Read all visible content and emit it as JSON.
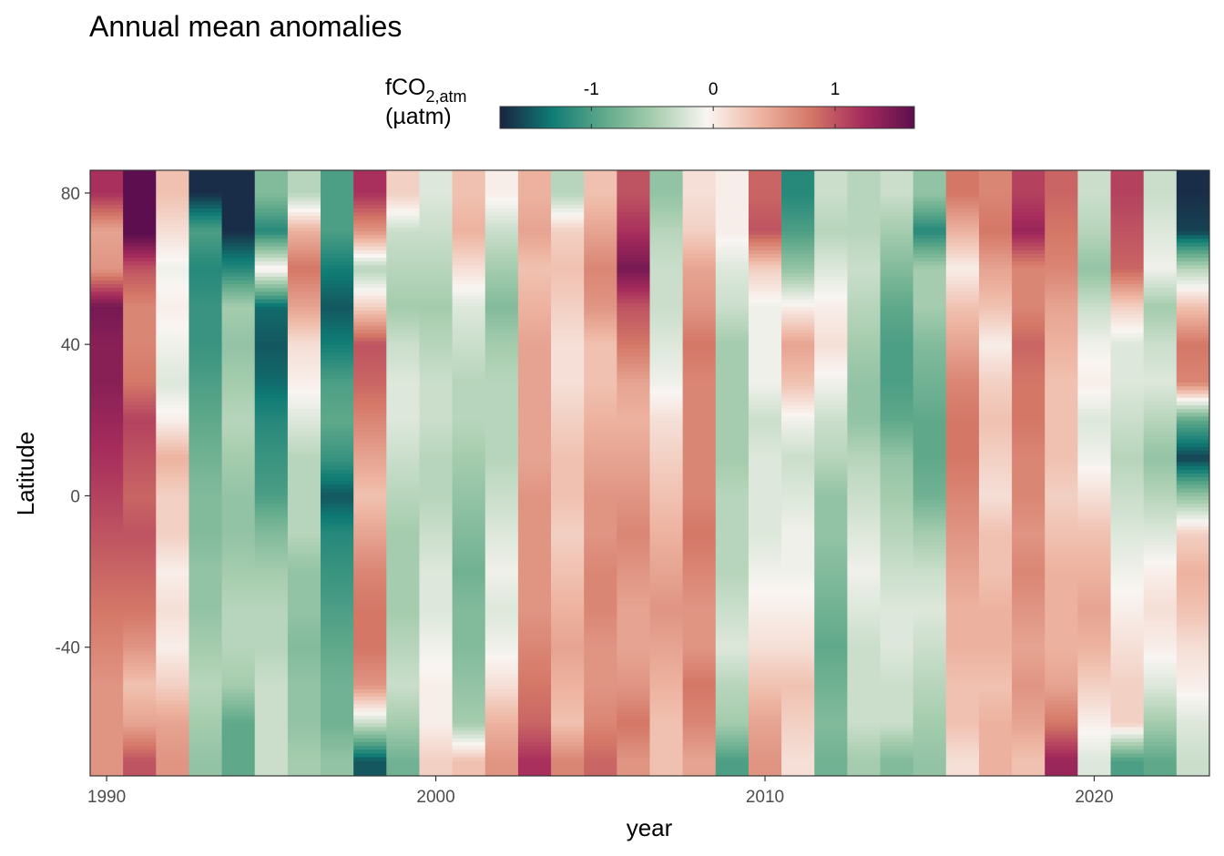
{
  "chart_data": {
    "type": "heatmap",
    "title": "Annual mean anomalies",
    "xlabel": "year",
    "ylabel": "Latitude",
    "xlim": [
      1989.5,
      2023.5
    ],
    "ylim": [
      -74,
      86
    ],
    "x_ticks": [
      1990,
      2000,
      2010,
      2020
    ],
    "y_ticks": [
      -40,
      0,
      40,
      80
    ],
    "grid": false,
    "legend": {
      "title_main": "fCO",
      "title_sub": "2,atm",
      "title_unit": "(µatm)",
      "position": "top",
      "limits": [
        -1.75,
        1.65
      ],
      "ticks": [
        -1,
        0,
        1
      ],
      "colors": [
        "#1a2342",
        "#0f7b74",
        "#5fa98a",
        "#a9ceb0",
        "#f9f5f2",
        "#eeb6a3",
        "#d47767",
        "#a62c5c",
        "#5d0e4e"
      ]
    },
    "latitudes": [
      -70,
      -60,
      -50,
      -40,
      -30,
      -20,
      -10,
      0,
      10,
      20,
      30,
      40,
      50,
      60,
      70,
      80
    ],
    "years": [
      1990,
      1991,
      1992,
      1993,
      1994,
      1995,
      1996,
      1997,
      1998,
      1999,
      2000,
      2001,
      2002,
      2003,
      2004,
      2005,
      2006,
      2007,
      2008,
      2009,
      2010,
      2011,
      2012,
      2013,
      2014,
      2015,
      2016,
      2017,
      2018,
      2019,
      2020,
      2021,
      2022,
      2023
    ],
    "values": [
      [
        0.6,
        0.6,
        0.6,
        0.7,
        0.8,
        0.9,
        1.0,
        1.1,
        1.2,
        1.3,
        1.4,
        1.4,
        1.5,
        0.6,
        0.5,
        1.2
      ],
      [
        1.0,
        0.5,
        0.3,
        0.6,
        0.8,
        0.9,
        1.0,
        0.9,
        1.0,
        1.1,
        0.8,
        0.7,
        0.7,
        1.0,
        1.7,
        1.7
      ],
      [
        0.6,
        0.5,
        0.2,
        0.0,
        0.1,
        0.0,
        0.2,
        0.2,
        0.4,
        0.0,
        -0.2,
        -0.1,
        0.0,
        -0.1,
        0.1,
        0.3
      ],
      [
        -0.6,
        -0.5,
        -0.4,
        -0.5,
        -0.6,
        -0.6,
        -0.7,
        -0.7,
        -0.8,
        -0.9,
        -1.0,
        -1.1,
        -1.1,
        -1.2,
        -1.0,
        -1.7
      ],
      [
        -0.9,
        -0.9,
        -0.5,
        -0.4,
        -0.4,
        -0.5,
        -0.6,
        -0.6,
        -0.5,
        -0.4,
        -0.5,
        -0.6,
        -0.5,
        -1.2,
        -1.7,
        -1.7
      ],
      [
        -0.3,
        -0.3,
        -0.3,
        -0.4,
        -0.4,
        -0.5,
        -0.7,
        -1.0,
        -1.1,
        -1.2,
        -1.4,
        -1.5,
        -1.4,
        0.0,
        -1.2,
        -0.7
      ],
      [
        -0.5,
        -0.6,
        -0.6,
        -0.7,
        -0.6,
        -0.6,
        -0.4,
        -0.4,
        -0.4,
        -0.2,
        0.0,
        0.1,
        0.5,
        0.8,
        0.4,
        -0.4
      ],
      [
        -0.6,
        -0.8,
        -0.8,
        -0.9,
        -1.0,
        -1.1,
        -1.2,
        -1.5,
        -1.1,
        -0.9,
        -1.0,
        -1.3,
        -1.5,
        -1.3,
        -1.0,
        -1.0
      ],
      [
        -1.5,
        -0.3,
        0.6,
        0.8,
        0.8,
        0.7,
        0.5,
        0.3,
        0.5,
        0.7,
        0.9,
        1.0,
        0.2,
        -0.4,
        0.6,
        1.2
      ],
      [
        -0.8,
        -0.5,
        -0.3,
        -0.4,
        -0.5,
        -0.5,
        -0.5,
        -0.4,
        -0.3,
        -0.2,
        -0.2,
        -0.3,
        -0.5,
        -0.4,
        -0.3,
        0.2
      ],
      [
        0.2,
        0.0,
        0.0,
        -0.1,
        -0.2,
        -0.2,
        -0.3,
        -0.4,
        -0.4,
        -0.3,
        -0.3,
        -0.4,
        -0.5,
        -0.4,
        -0.3,
        -0.2
      ],
      [
        0.3,
        -0.5,
        -0.6,
        -0.7,
        -0.7,
        -0.8,
        -0.7,
        -0.6,
        -0.5,
        -0.4,
        -0.4,
        -0.3,
        -0.2,
        0.1,
        0.4,
        0.3
      ],
      [
        0.6,
        0.4,
        0.1,
        -0.1,
        -0.2,
        -0.1,
        -0.2,
        -0.3,
        -0.4,
        -0.4,
        -0.4,
        -0.5,
        -0.7,
        -0.5,
        -0.3,
        0.0
      ],
      [
        1.2,
        0.9,
        0.8,
        0.7,
        0.6,
        0.6,
        0.6,
        0.6,
        0.5,
        0.5,
        0.5,
        0.5,
        0.4,
        0.3,
        0.5,
        0.4
      ],
      [
        0.7,
        0.3,
        0.4,
        0.5,
        0.4,
        0.3,
        0.2,
        0.3,
        0.3,
        0.2,
        0.1,
        0.1,
        0.2,
        0.3,
        0.2,
        -0.4
      ],
      [
        0.9,
        0.7,
        0.6,
        0.6,
        0.7,
        0.7,
        0.6,
        0.6,
        0.5,
        0.4,
        0.3,
        0.3,
        0.6,
        0.7,
        0.5,
        0.3
      ],
      [
        0.6,
        0.8,
        0.6,
        0.5,
        0.5,
        0.6,
        0.7,
        0.6,
        0.5,
        0.4,
        0.5,
        0.8,
        1.0,
        1.5,
        1.2,
        1.0
      ],
      [
        0.3,
        0.3,
        0.4,
        0.5,
        0.6,
        0.5,
        0.4,
        0.3,
        0.2,
        0.1,
        -0.1,
        -0.2,
        -0.3,
        -0.3,
        -0.4,
        -0.6
      ],
      [
        0.5,
        0.7,
        0.8,
        0.6,
        0.6,
        0.7,
        0.8,
        0.7,
        0.7,
        0.7,
        0.7,
        0.8,
        0.6,
        0.5,
        0.2,
        0.1
      ],
      [
        -1.0,
        -0.5,
        -0.4,
        -0.2,
        -0.3,
        -0.4,
        -0.4,
        -0.4,
        -0.5,
        -0.5,
        -0.5,
        -0.5,
        -0.3,
        -0.2,
        0.0,
        0.0
      ],
      [
        0.6,
        0.5,
        0.3,
        0.1,
        0.0,
        -0.1,
        -0.2,
        -0.2,
        -0.2,
        -0.3,
        -0.1,
        -0.1,
        -0.1,
        0.2,
        1.0,
        0.9
      ],
      [
        0.1,
        0.2,
        0.3,
        0.1,
        0.0,
        -0.1,
        -0.1,
        -0.2,
        -0.3,
        -0.1,
        0.3,
        0.5,
        0.0,
        -0.6,
        -1.0,
        -1.2
      ],
      [
        -0.8,
        -0.7,
        -0.8,
        -0.9,
        -0.8,
        -0.7,
        -0.6,
        -0.6,
        -0.4,
        -0.3,
        -0.1,
        0.1,
        0.0,
        -0.2,
        -0.4,
        -0.3
      ],
      [
        -0.5,
        -0.3,
        -0.3,
        -0.3,
        -0.2,
        -0.1,
        -0.2,
        -0.3,
        -0.4,
        -0.6,
        -0.6,
        -0.5,
        -0.4,
        -0.3,
        -0.4,
        -0.4
      ],
      [
        -0.7,
        -0.3,
        -0.3,
        -0.2,
        -0.2,
        -0.3,
        -0.4,
        -0.5,
        -0.6,
        -0.9,
        -1.0,
        -1.0,
        -0.9,
        -0.7,
        -0.5,
        -0.3
      ],
      [
        -0.6,
        -0.5,
        -0.4,
        -0.3,
        -0.2,
        -0.3,
        -0.5,
        -0.8,
        -0.9,
        -0.9,
        -0.8,
        -0.7,
        -0.5,
        -0.5,
        -1.2,
        -0.6
      ],
      [
        0.1,
        0.3,
        0.3,
        0.4,
        0.4,
        0.5,
        0.6,
        0.7,
        0.8,
        0.8,
        0.7,
        0.5,
        0.3,
        0.0,
        0.4,
        0.8
      ],
      [
        0.4,
        0.4,
        0.3,
        0.4,
        0.4,
        0.3,
        0.3,
        0.1,
        0.2,
        0.3,
        0.2,
        0.0,
        0.3,
        0.5,
        0.8,
        0.7
      ],
      [
        0.3,
        0.5,
        0.6,
        0.5,
        0.6,
        0.7,
        0.6,
        0.7,
        0.7,
        0.8,
        0.8,
        0.9,
        0.7,
        0.7,
        1.3,
        1.1
      ],
      [
        1.3,
        0.8,
        0.5,
        0.4,
        0.4,
        0.4,
        0.3,
        0.2,
        0.3,
        0.3,
        0.3,
        0.4,
        0.5,
        0.7,
        0.8,
        0.9
      ],
      [
        -0.2,
        0.0,
        0.2,
        0.4,
        0.5,
        0.4,
        0.3,
        0.1,
        -0.1,
        -0.2,
        0.0,
        -0.1,
        -0.3,
        -0.6,
        -0.4,
        -0.3
      ],
      [
        -1.0,
        0.2,
        0.2,
        0.1,
        0.0,
        -0.1,
        -0.2,
        -0.3,
        -0.4,
        -0.3,
        -0.2,
        -0.2,
        0.2,
        0.9,
        1.0,
        1.1
      ],
      [
        -0.9,
        -0.5,
        -0.2,
        0.0,
        0.1,
        0.0,
        -0.2,
        -0.4,
        -0.6,
        -0.4,
        -0.2,
        -0.3,
        -0.5,
        -0.1,
        -0.2,
        -0.3
      ],
      [
        -0.3,
        -0.2,
        0.0,
        0.1,
        0.3,
        0.4,
        0.2,
        -0.6,
        -1.6,
        -0.9,
        0.7,
        0.8,
        0.3,
        -0.4,
        -1.6,
        -1.7
      ]
    ]
  }
}
